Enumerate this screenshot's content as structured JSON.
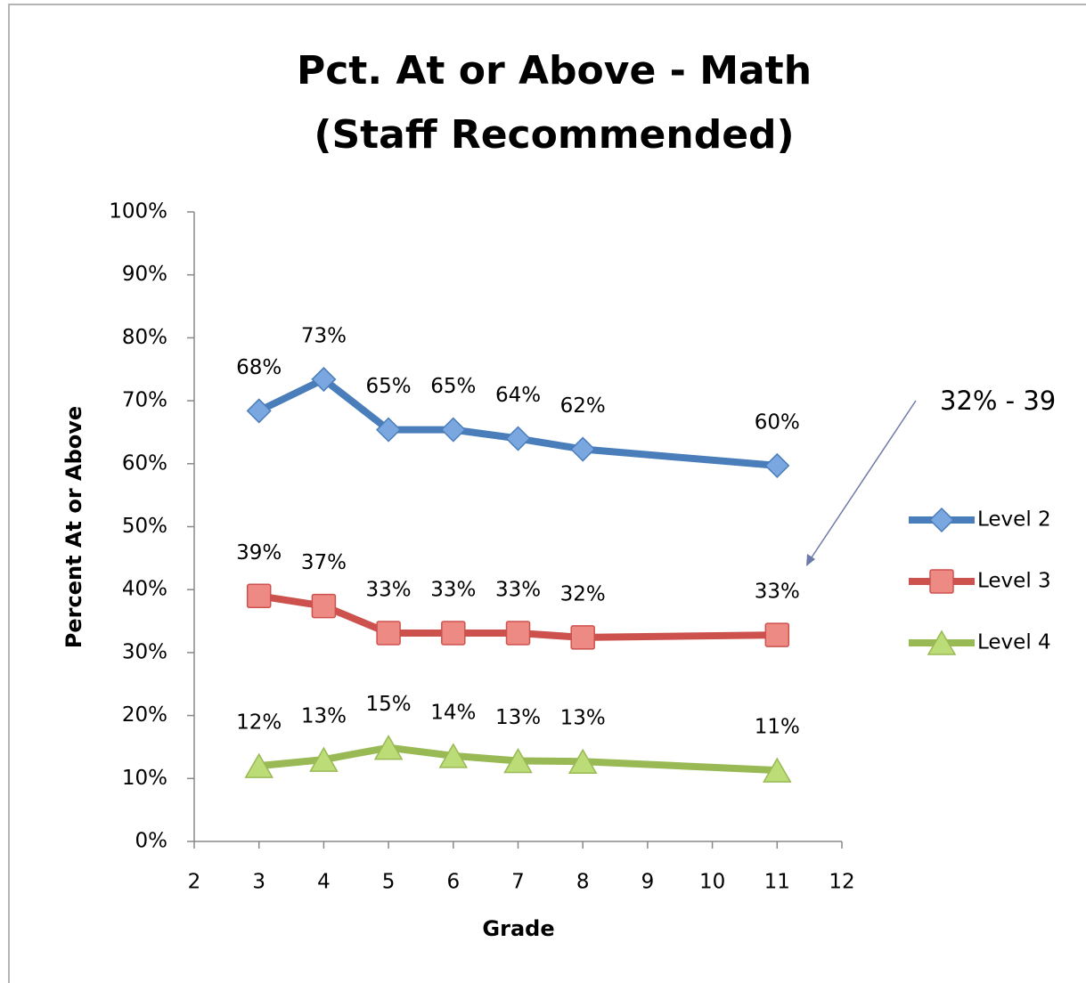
{
  "chart_data": {
    "type": "line",
    "title": [
      "Pct. At or Above - Math",
      "(Staff Recommended)"
    ],
    "xlabel": "Grade",
    "ylabel": "Percent At or Above",
    "annotation": "32% - 39",
    "x": [
      3,
      4,
      5,
      6,
      7,
      8,
      11
    ],
    "xlim": [
      2,
      12
    ],
    "xticks": [
      2,
      3,
      4,
      5,
      6,
      7,
      8,
      9,
      10,
      11,
      12
    ],
    "ylim": [
      0,
      100
    ],
    "yticks": [
      {
        "value": 0,
        "label": "0%"
      },
      {
        "value": 10,
        "label": "10%"
      },
      {
        "value": 20,
        "label": "20%"
      },
      {
        "value": 30,
        "label": "30%"
      },
      {
        "value": 40,
        "label": "40%"
      },
      {
        "value": 50,
        "label": "50%"
      },
      {
        "value": 60,
        "label": "60%"
      },
      {
        "value": 70,
        "label": "70%"
      },
      {
        "value": 80,
        "label": "80%"
      },
      {
        "value": 90,
        "label": "90%"
      },
      {
        "value": 100,
        "label": "100%"
      }
    ],
    "legend": "right",
    "series": [
      {
        "name": "Level 2",
        "color": "#4a7ebb",
        "marker": "diamond",
        "values": [
          68.4,
          73.4,
          65.4,
          65.4,
          64.0,
          62.3,
          59.7
        ],
        "value_labels": [
          "68%",
          "73%",
          "65%",
          "65%",
          "64%",
          "62%",
          "60%"
        ]
      },
      {
        "name": "Level 3",
        "color": "#cd524e",
        "marker": "square",
        "values": [
          39.0,
          37.4,
          33.1,
          33.1,
          33.1,
          32.4,
          32.8
        ],
        "value_labels": [
          "39%",
          "37%",
          "33%",
          "33%",
          "33%",
          "32%",
          "33%"
        ]
      },
      {
        "name": "Level 4",
        "color": "#98b954",
        "marker": "triangle",
        "values": [
          12.0,
          13.0,
          14.9,
          13.6,
          12.8,
          12.7,
          11.3
        ],
        "value_labels": [
          "12%",
          "13%",
          "15%",
          "14%",
          "13%",
          "13%",
          "11%"
        ]
      }
    ]
  }
}
